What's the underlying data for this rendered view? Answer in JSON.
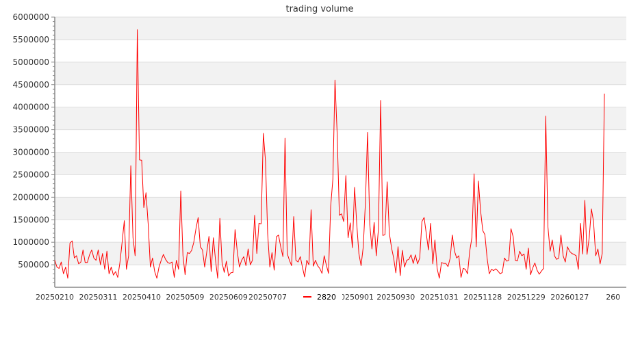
{
  "chart_data": {
    "type": "line",
    "title": "trading volume",
    "xlabel": "",
    "ylabel": "",
    "ylim": [
      0,
      6000000
    ],
    "yticks": [
      500000,
      1000000,
      1500000,
      2000000,
      2500000,
      3000000,
      3500000,
      4000000,
      4500000,
      5000000,
      5500000,
      6000000
    ],
    "xtick_labels": [
      {
        "index": 0,
        "label": "20250210"
      },
      {
        "index": 20,
        "label": "20250311"
      },
      {
        "index": 40,
        "label": "20250410"
      },
      {
        "index": 60,
        "label": "20250509"
      },
      {
        "index": 80,
        "label": "20250609"
      },
      {
        "index": 98,
        "label": "20250707"
      },
      {
        "index": 138,
        "label": "20250901"
      },
      {
        "index": 157,
        "label": "20250930"
      },
      {
        "index": 177,
        "label": "20251031"
      },
      {
        "index": 197,
        "label": "20251128"
      },
      {
        "index": 217,
        "label": "20251229"
      },
      {
        "index": 237,
        "label": "20260127"
      },
      {
        "index": 257,
        "label": "260"
      }
    ],
    "grid": true,
    "legend": {
      "placement": "bottom-center",
      "entries": [
        "2820"
      ]
    },
    "series": [
      {
        "name": "2820",
        "color": "#ff0000",
        "values": [
          600000,
          450000,
          420000,
          560000,
          300000,
          450000,
          200000,
          980000,
          1030000,
          650000,
          700000,
          520000,
          560000,
          830000,
          550000,
          550000,
          720000,
          830000,
          650000,
          600000,
          830000,
          500000,
          750000,
          400000,
          800000,
          300000,
          450000,
          270000,
          350000,
          220000,
          550000,
          1000000,
          1480000,
          400000,
          700000,
          2700000,
          1100000,
          700000,
          5720000,
          2830000,
          2820000,
          1770000,
          2100000,
          1400000,
          450000,
          650000,
          350000,
          200000,
          450000,
          600000,
          730000,
          620000,
          550000,
          530000,
          560000,
          220000,
          600000,
          400000,
          2140000,
          700000,
          280000,
          770000,
          750000,
          820000,
          1000000,
          1300000,
          1550000,
          900000,
          830000,
          450000,
          800000,
          1130000,
          350000,
          1100000,
          600000,
          200000,
          1530000,
          550000,
          330000,
          580000,
          250000,
          320000,
          330000,
          1280000,
          800000,
          450000,
          600000,
          680000,
          480000,
          850000,
          500000,
          600000,
          1600000,
          750000,
          1420000,
          1410000,
          3420000,
          2800000,
          1200000,
          450000,
          770000,
          380000,
          1120000,
          1160000,
          900000,
          680000,
          3310000,
          750000,
          600000,
          480000,
          1570000,
          600000,
          560000,
          680000,
          450000,
          230000,
          600000,
          500000,
          1720000,
          470000,
          600000,
          480000,
          420000,
          310000,
          700000,
          500000,
          310000,
          1800000,
          2400000,
          4600000,
          3400000,
          1600000,
          1630000,
          1460000,
          2480000,
          1100000,
          1430000,
          880000,
          2220000,
          1400000,
          750000,
          480000,
          900000,
          1900000,
          3440000,
          1400000,
          850000,
          1440000,
          700000,
          1300000,
          4150000,
          1150000,
          1170000,
          2340000,
          1200000,
          880000,
          650000,
          320000,
          900000,
          260000,
          820000,
          450000,
          600000,
          620000,
          720000,
          530000,
          720000,
          520000,
          650000,
          1460000,
          1550000,
          1200000,
          830000,
          1420000,
          520000,
          1050000,
          420000,
          200000,
          550000,
          530000,
          530000,
          460000,
          650000,
          1160000,
          800000,
          650000,
          700000,
          220000,
          420000,
          400000,
          300000,
          800000,
          1100000,
          2520000,
          900000,
          2360000,
          1700000,
          1260000,
          1170000,
          650000,
          300000,
          400000,
          370000,
          410000,
          360000,
          300000,
          330000,
          650000,
          580000,
          600000,
          1300000,
          1120000,
          600000,
          590000,
          800000,
          700000,
          740000,
          400000,
          870000,
          280000,
          430000,
          540000,
          380000,
          290000,
          360000,
          420000,
          3800000,
          1340000,
          800000,
          1050000,
          700000,
          620000,
          650000,
          1160000,
          700000,
          560000,
          900000,
          800000,
          750000,
          730000,
          700000,
          400000,
          1420000,
          740000,
          1930000,
          730000,
          1100000,
          1740000,
          1460000,
          700000,
          850000,
          520000,
          750000,
          4300000
        ]
      }
    ]
  },
  "colors": {
    "band": "#f2f2f2",
    "grid": "#dddddd",
    "axis": "#888888",
    "text": "#333333"
  }
}
